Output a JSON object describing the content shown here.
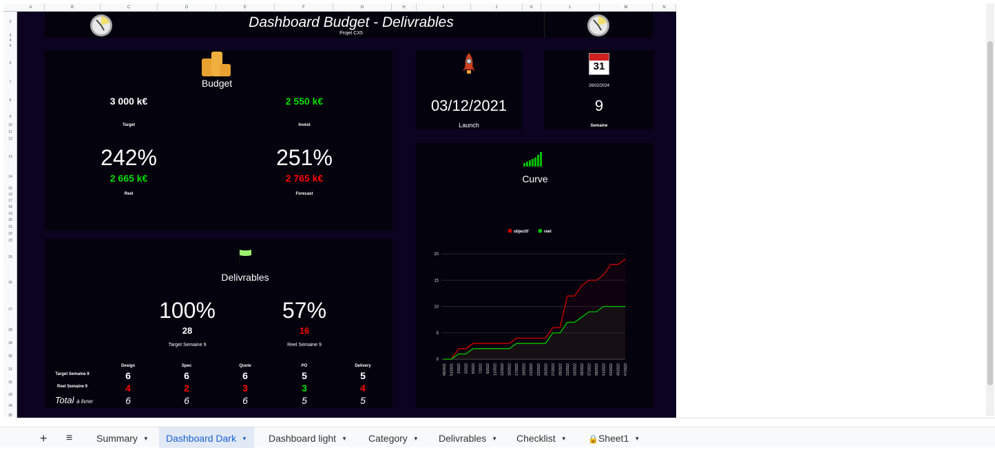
{
  "columns": [
    "A",
    "B",
    "C",
    "D",
    "E",
    "F",
    "G",
    "H",
    "I",
    "J",
    "K",
    "L",
    "M",
    "N"
  ],
  "rows": [
    "2",
    "3",
    "4",
    "5",
    "6",
    "7",
    "8",
    "9",
    "10",
    "11",
    "12",
    "13",
    "14",
    "15",
    "16",
    "17",
    "18",
    "19",
    "20",
    "21",
    "22",
    "23",
    "25",
    "26",
    "27",
    "28",
    "29",
    "30",
    "31",
    "32",
    "33",
    "34",
    "35"
  ],
  "header": {
    "title": "Dashboard Budget - Delivrables",
    "subtitle": "Projet CX5"
  },
  "budget": {
    "title": "Budget",
    "target_value": "3 000  k€",
    "target_label": "Target",
    "invest_value": "2 550  k€",
    "invest_label": "Invest",
    "reel_pct": "242%",
    "reel_value": "2 665  k€",
    "reel_label": "Reel",
    "forecast_pct": "251%",
    "forecast_value": "2 765  k€",
    "forecast_label": "Forecast"
  },
  "launch": {
    "date": "03/12/2021",
    "label": "Launch"
  },
  "week": {
    "calendar_day": "31",
    "date": "26/02/2024",
    "value": "9",
    "label": "Semaine"
  },
  "deliverables": {
    "title": "Delivrables",
    "target_pct": "100%",
    "target_count": "28",
    "target_label": "Target  Semaine 9",
    "reel_pct": "57%",
    "reel_count": "16",
    "reel_label": "Reel  Semaine 9",
    "columns": [
      "Design",
      "Spec",
      "Quote",
      "PO",
      "Delivery"
    ],
    "target_row_label": "Target  Semaine 9",
    "target_row": [
      "6",
      "6",
      "6",
      "5",
      "5"
    ],
    "reel_row_label": "Reel  Semaine 9",
    "reel_row": [
      "4",
      "2",
      "3",
      "3",
      "4"
    ],
    "reel_status": [
      "bad",
      "bad",
      "bad",
      "good",
      "bad"
    ],
    "total_label": "Total",
    "total_sub": "à livrer",
    "total_row": [
      "6",
      "6",
      "6",
      "5",
      "5"
    ]
  },
  "colors": {
    "good": "#00e000",
    "bad": "#ff0000",
    "objectif": "#d00000",
    "reel": "#00c800"
  },
  "chart_data": {
    "type": "line",
    "title": "Curve",
    "x": [
      "48/2021",
      "51/2021",
      "1/2022",
      "3/2022",
      "5/2022",
      "7/2022",
      "9/2022",
      "11/2022",
      "13/2022",
      "15/2022",
      "17/2022",
      "19/2022",
      "21/2022",
      "23/2022",
      "25/2022",
      "27/2022",
      "29/2022",
      "31/2022",
      "33/2022",
      "35/2022",
      "37/2022",
      "39/2022",
      "41/2022",
      "43/2022",
      "45/2022",
      "47/2022"
    ],
    "series": [
      {
        "name": "objectif",
        "values": [
          0,
          0,
          2,
          2,
          3,
          3,
          3,
          3,
          3,
          3,
          4,
          4,
          4,
          4,
          4,
          6,
          6,
          12,
          12,
          14,
          15,
          15,
          16,
          18,
          18,
          19
        ]
      },
      {
        "name": "reel",
        "values": [
          0,
          0,
          1,
          1,
          2,
          2,
          2,
          2,
          2,
          2,
          3,
          3,
          3,
          3,
          3,
          5,
          5,
          7,
          7,
          8,
          9,
          9,
          10,
          10,
          10,
          10
        ]
      }
    ],
    "yticks": [
      "0",
      "5",
      "10",
      "15",
      "20"
    ],
    "ylim": [
      0,
      20
    ],
    "legend": "top-center",
    "grid": true
  },
  "tabs": [
    {
      "label": "Summary"
    },
    {
      "label": "Dashboard Dark",
      "active": true
    },
    {
      "label": "Dashboard light"
    },
    {
      "label": "Category"
    },
    {
      "label": "Delivrables"
    },
    {
      "label": "Checklist"
    },
    {
      "label": "Sheet1",
      "locked": true
    }
  ]
}
